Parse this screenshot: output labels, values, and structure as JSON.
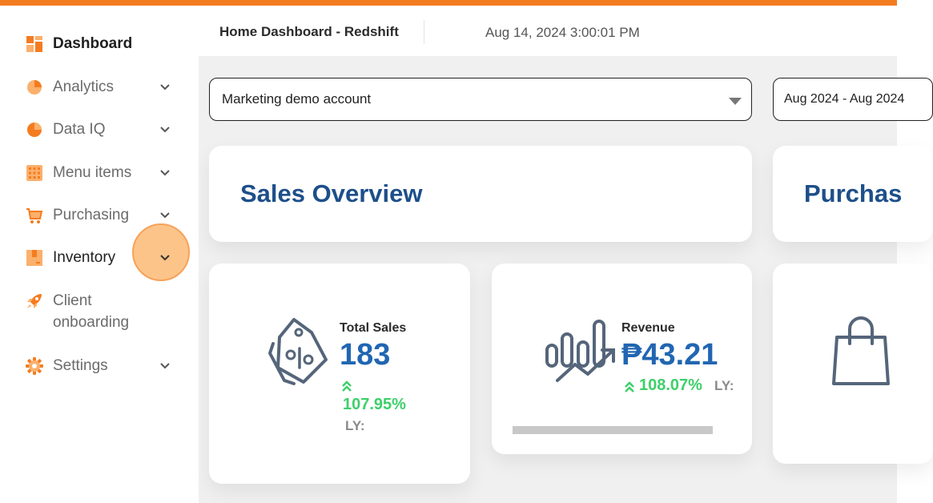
{
  "sidebar": {
    "items": [
      {
        "label": "Dashboard",
        "icon": "grid-icon",
        "active": true
      },
      {
        "label": "Analytics",
        "icon": "pie-chart-icon"
      },
      {
        "label": "Data IQ",
        "icon": "pie-chart-icon"
      },
      {
        "label": "Menu items",
        "icon": "menu-grid-icon"
      },
      {
        "label": "Purchasing",
        "icon": "cart-icon"
      },
      {
        "label": "Inventory",
        "icon": "box-icon"
      },
      {
        "label": "Client onboarding",
        "icon": "rocket-icon"
      },
      {
        "label": "Settings",
        "icon": "gear-icon"
      }
    ]
  },
  "header": {
    "title": "Home Dashboard - Redshift",
    "timestamp": "Aug 14, 2024 3:00:01 PM"
  },
  "filters": {
    "account": "Marketing demo account",
    "date_range": "Aug 2024 - Aug 2024"
  },
  "sections": {
    "sales_title": "Sales Overview",
    "purchase_title": "Purchas"
  },
  "metrics": {
    "total_sales": {
      "label": "Total Sales",
      "value": "183",
      "change": "107.95%",
      "ly": "LY:"
    },
    "revenue": {
      "label": "Revenue",
      "value": "₱43.21",
      "change": "108.07%",
      "ly": "LY:"
    }
  },
  "colors": {
    "accent": "#f47c20",
    "title_blue": "#1d4f8a",
    "value_blue": "#2166b2",
    "positive_green": "#3ecf6a"
  }
}
